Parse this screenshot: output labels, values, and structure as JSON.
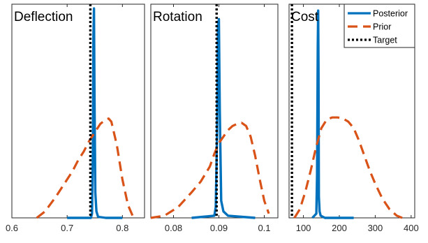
{
  "chart_data": [
    {
      "type": "line",
      "title": "Deflection",
      "xlim": [
        0.6,
        0.84
      ],
      "xticks": [
        0.6,
        0.7,
        0.8
      ],
      "xtick_labels": [
        "0.6",
        "0.7",
        "0.8"
      ],
      "ylim": [
        0,
        1
      ],
      "target": 0.742,
      "series": [
        {
          "name": "Posterior",
          "color": "#0072BD",
          "style": "solid",
          "x": [
            0.7,
            0.743,
            0.745,
            0.7465,
            0.7475,
            0.7485,
            0.7495,
            0.751,
            0.753,
            0.756,
            0.77,
            0.8
          ],
          "y": [
            0.0,
            0.0,
            0.02,
            0.3,
            0.85,
            0.98,
            0.55,
            0.12,
            0.03,
            0.005,
            0.0,
            0.0
          ]
        },
        {
          "name": "Prior",
          "color": "#D95319",
          "style": "dashed",
          "x": [
            0.645,
            0.66,
            0.68,
            0.7,
            0.71,
            0.72,
            0.73,
            0.74,
            0.75,
            0.76,
            0.77,
            0.775,
            0.78,
            0.79,
            0.8,
            0.81,
            0.82
          ],
          "y": [
            0.0,
            0.03,
            0.1,
            0.18,
            0.22,
            0.27,
            0.31,
            0.36,
            0.4,
            0.44,
            0.46,
            0.465,
            0.45,
            0.34,
            0.18,
            0.06,
            0.0
          ]
        }
      ]
    },
    {
      "type": "line",
      "title": "Rotation",
      "xlim": [
        0.075,
        0.103
      ],
      "xticks": [
        0.08,
        0.09,
        0.1
      ],
      "xtick_labels": [
        "0.08",
        "0.09",
        "0.1"
      ],
      "ylim": [
        0,
        1
      ],
      "target": 0.0895,
      "series": [
        {
          "name": "Posterior",
          "color": "#0072BD",
          "style": "solid",
          "x": [
            0.084,
            0.089,
            0.0893,
            0.0896,
            0.0898,
            0.09,
            0.0902,
            0.0905,
            0.091,
            0.092,
            0.095,
            0.098
          ],
          "y": [
            0.0,
            0.01,
            0.05,
            0.4,
            0.9,
            0.93,
            0.5,
            0.08,
            0.03,
            0.01,
            0.005,
            0.0
          ]
        },
        {
          "name": "Prior",
          "color": "#D95319",
          "style": "dashed",
          "x": [
            0.075,
            0.078,
            0.081,
            0.084,
            0.086,
            0.088,
            0.089,
            0.09,
            0.091,
            0.092,
            0.093,
            0.094,
            0.095,
            0.096,
            0.097,
            0.098,
            0.099,
            0.1,
            0.101
          ],
          "y": [
            0.0,
            0.01,
            0.05,
            0.12,
            0.17,
            0.24,
            0.3,
            0.35,
            0.38,
            0.41,
            0.43,
            0.44,
            0.445,
            0.43,
            0.38,
            0.29,
            0.18,
            0.08,
            0.02
          ]
        }
      ]
    },
    {
      "type": "line",
      "title": "Cost",
      "xlim": [
        60,
        410
      ],
      "xticks": [
        100,
        200,
        300,
        400
      ],
      "xtick_labels": [
        "100",
        "200",
        "300",
        "400"
      ],
      "ylim": [
        0,
        1
      ],
      "target": 68,
      "series": [
        {
          "name": "Posterior",
          "color": "#0072BD",
          "style": "solid",
          "x": [
            125,
            136,
            138,
            140,
            141,
            142,
            143,
            145,
            148,
            160,
            200,
            240
          ],
          "y": [
            0.0,
            0.02,
            0.2,
            0.8,
            0.97,
            0.7,
            0.1,
            0.03,
            0.01,
            0.0,
            0.0,
            0.0
          ]
        },
        {
          "name": "Prior",
          "color": "#D95319",
          "style": "dashed",
          "x": [
            75,
            90,
            105,
            120,
            135,
            150,
            165,
            180,
            195,
            210,
            225,
            240,
            255,
            270,
            285,
            300,
            320,
            340,
            360,
            375
          ],
          "y": [
            0.0,
            0.04,
            0.12,
            0.22,
            0.33,
            0.42,
            0.46,
            0.47,
            0.47,
            0.465,
            0.45,
            0.42,
            0.36,
            0.29,
            0.22,
            0.16,
            0.09,
            0.04,
            0.01,
            0.0
          ]
        }
      ]
    }
  ],
  "legend": {
    "placement": "top-right of Cost panel",
    "items": [
      {
        "label": "Posterior",
        "color": "#0072BD",
        "style": "solid"
      },
      {
        "label": "Prior",
        "color": "#D95319",
        "style": "dashed"
      },
      {
        "label": "Target",
        "color": "#000000",
        "style": "dotted"
      }
    ]
  }
}
